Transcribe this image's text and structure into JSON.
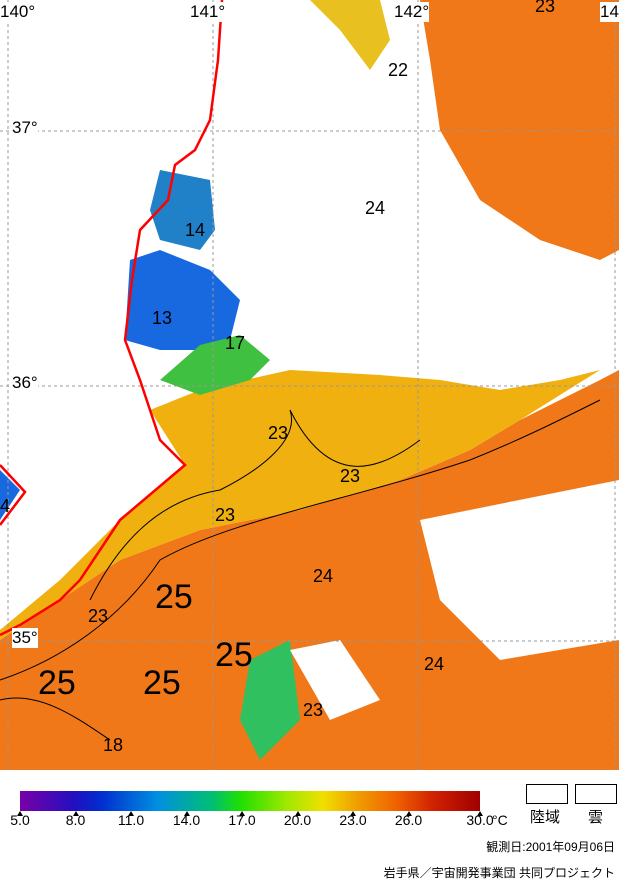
{
  "map": {
    "longitude_labels": [
      "140°",
      "141°",
      "142°",
      "14"
    ],
    "latitude_labels": [
      "37°",
      "36°",
      "35°"
    ],
    "contour_labels": [
      {
        "text": "23",
        "big": false
      },
      {
        "text": "22",
        "big": false
      },
      {
        "text": "24",
        "big": false
      },
      {
        "text": "14",
        "big": false
      },
      {
        "text": "13",
        "big": false
      },
      {
        "text": "17",
        "big": false
      },
      {
        "text": "23",
        "big": false
      },
      {
        "text": "23",
        "big": false
      },
      {
        "text": "23",
        "big": false
      },
      {
        "text": "24",
        "big": false
      },
      {
        "text": "23",
        "big": false
      },
      {
        "text": "25",
        "big": true
      },
      {
        "text": "25",
        "big": true
      },
      {
        "text": "25",
        "big": true
      },
      {
        "text": "25",
        "big": true
      },
      {
        "text": "24",
        "big": false
      },
      {
        "text": "23",
        "big": false
      },
      {
        "text": "18",
        "big": false
      },
      {
        "text": "4",
        "big": false
      }
    ],
    "colors": {
      "coastline": "#ff0000",
      "warm_sea": "#f07818",
      "mid_sea": "#f0b010",
      "cold_sea": "#1868e0",
      "cloud_land": "#ffffff"
    }
  },
  "colorbar": {
    "tick_labels": [
      "5.0",
      "8.0",
      "11.0",
      "14.0",
      "17.0",
      "20.0",
      "23.0",
      "26.0",
      "30.0"
    ],
    "unit": "°C",
    "range": [
      5.0,
      30.0
    ]
  },
  "legend": {
    "land_label": "陸域",
    "cloud_label": "雲"
  },
  "observation_date": "観測日:2001年09月06日",
  "credit": "岩手県／宇宙開発事業団 共同プロジェクト"
}
